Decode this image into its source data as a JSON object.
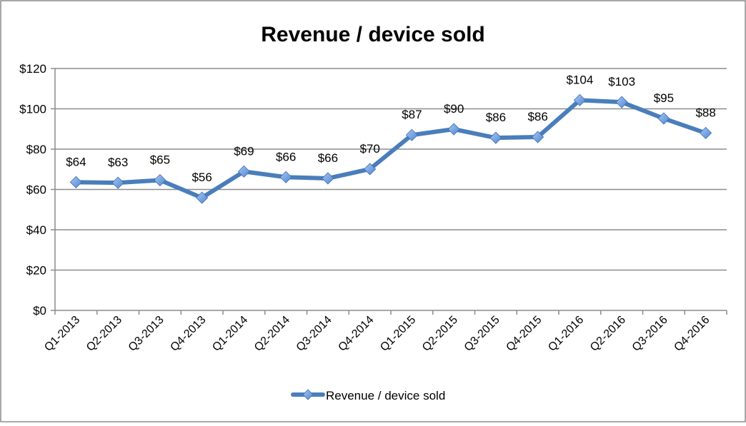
{
  "chart_data": {
    "type": "line",
    "title": "Revenue / device sold",
    "xlabel": "",
    "ylabel": "",
    "ylim": [
      0,
      120
    ],
    "yticks": [
      0,
      20,
      40,
      60,
      80,
      100,
      120
    ],
    "ytick_labels": [
      "$0",
      "$20",
      "$40",
      "$60",
      "$80",
      "$100",
      "$120"
    ],
    "grid": true,
    "legend_position": "bottom",
    "categories": [
      "Q1-2013",
      "Q2-2013",
      "Q3-2013",
      "Q4-2013",
      "Q1-2014",
      "Q2-2014",
      "Q3-2014",
      "Q4-2014",
      "Q1-2015",
      "Q2-2015",
      "Q3-2015",
      "Q4-2015",
      "Q1-2016",
      "Q2-2016",
      "Q3-2016",
      "Q4-2016"
    ],
    "series": [
      {
        "name": "Revenue / device sold",
        "color": "#4a7ebb",
        "marker_color": "#6f9fe0",
        "values": [
          63.6,
          63.3,
          64.6,
          55.9,
          68.9,
          66.1,
          65.5,
          70.1,
          87.0,
          89.9,
          85.6,
          86.0,
          104.3,
          103.3,
          95.2,
          88.0
        ],
        "data_labels": [
          "$64",
          "$63",
          "$65",
          "$56",
          "$69",
          "$66",
          "$66",
          "$70",
          "$87",
          "$90",
          "$86",
          "$86",
          "$104",
          "$103",
          "$95",
          "$88"
        ]
      }
    ]
  }
}
